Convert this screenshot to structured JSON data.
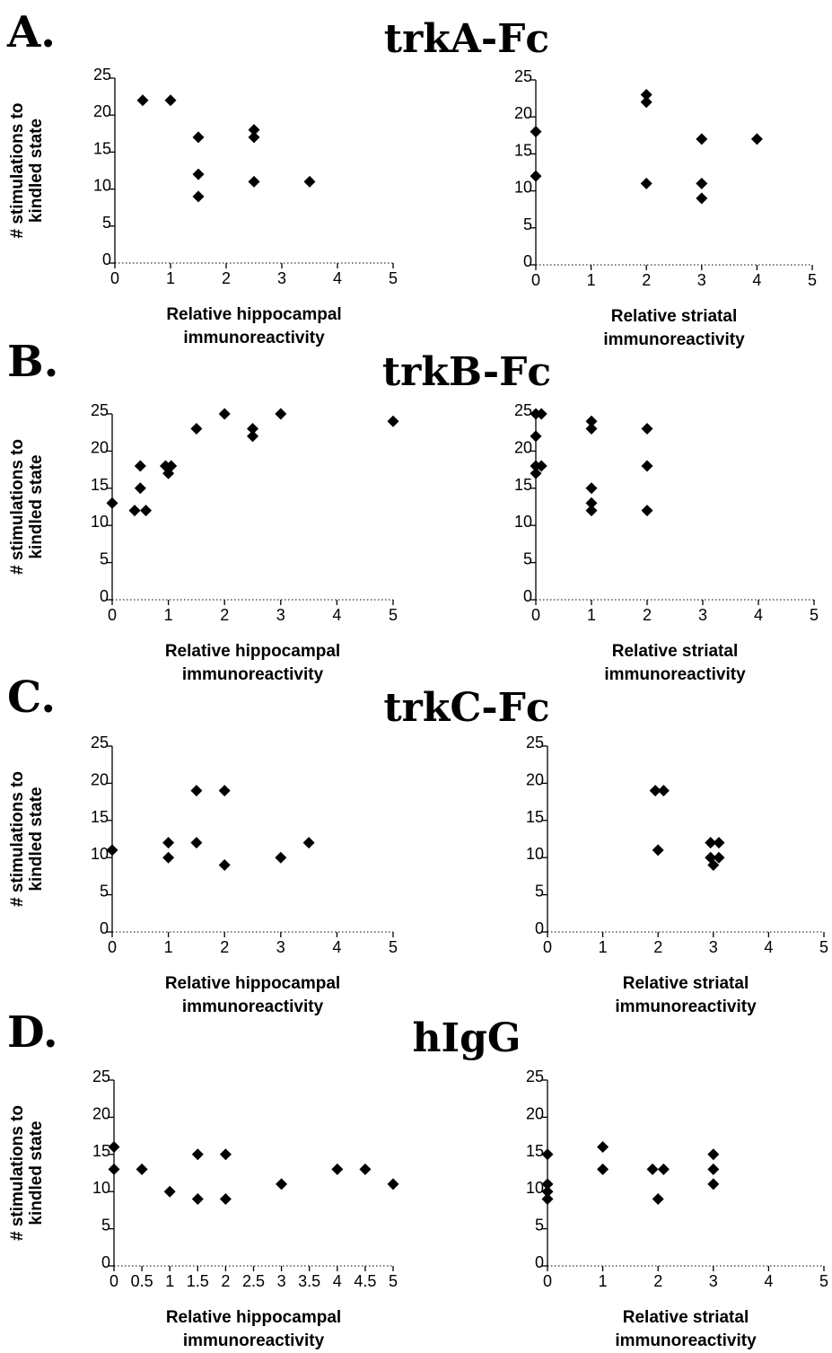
{
  "chart_data": [
    {
      "type": "scatter",
      "panel": "A.",
      "title": "trkA-Fc",
      "xlabel": [
        "Relative hippocampal",
        "immunoreactivity"
      ],
      "ylabel": [
        "# stimulations to",
        "kindled state"
      ],
      "xlim": [
        0,
        5
      ],
      "ylim": [
        0,
        25
      ],
      "xticks": [
        "0",
        "1",
        "2",
        "3",
        "4",
        "5"
      ],
      "yticks": [
        "0",
        "5",
        "10",
        "15",
        "20",
        "25"
      ],
      "points": [
        [
          0.5,
          22
        ],
        [
          1,
          22
        ],
        [
          1.5,
          17
        ],
        [
          1.5,
          12
        ],
        [
          1.5,
          9
        ],
        [
          2.5,
          18
        ],
        [
          2.5,
          17
        ],
        [
          2.5,
          11
        ],
        [
          3.5,
          11
        ]
      ]
    },
    {
      "type": "scatter",
      "panel": "",
      "title": "",
      "xlabel": [
        "Relative striatal",
        "immunoreactivity"
      ],
      "ylabel": [],
      "xlim": [
        0,
        5
      ],
      "ylim": [
        0,
        25
      ],
      "xticks": [
        "0",
        "1",
        "2",
        "3",
        "4",
        "5"
      ],
      "yticks": [
        "0",
        "5",
        "10",
        "15",
        "20",
        "25"
      ],
      "points": [
        [
          0,
          18
        ],
        [
          0,
          12
        ],
        [
          2,
          23
        ],
        [
          2,
          22
        ],
        [
          2,
          11
        ],
        [
          3,
          17
        ],
        [
          3,
          11
        ],
        [
          3,
          9
        ],
        [
          4,
          17
        ]
      ]
    },
    {
      "type": "scatter",
      "panel": "B.",
      "title": "trkB-Fc",
      "xlabel": [
        "Relative hippocampal",
        "immunoreactivity"
      ],
      "ylabel": [
        "# stimulations to",
        "kindled state"
      ],
      "xlim": [
        0,
        5
      ],
      "ylim": [
        0,
        25
      ],
      "xticks": [
        "0",
        "1",
        "2",
        "3",
        "4",
        "5"
      ],
      "yticks": [
        "0",
        "5",
        "10",
        "15",
        "20",
        "25"
      ],
      "points": [
        [
          0,
          13
        ],
        [
          0.4,
          12
        ],
        [
          0.5,
          18
        ],
        [
          0.5,
          15
        ],
        [
          0.6,
          12
        ],
        [
          0.95,
          18
        ],
        [
          1,
          17
        ],
        [
          1.05,
          18
        ],
        [
          1.5,
          23
        ],
        [
          2,
          25
        ],
        [
          2.5,
          23
        ],
        [
          2.5,
          22
        ],
        [
          3,
          25
        ],
        [
          5,
          24
        ]
      ]
    },
    {
      "type": "scatter",
      "panel": "",
      "title": "",
      "xlabel": [
        "Relative striatal",
        "immunoreactivity"
      ],
      "ylabel": [],
      "xlim": [
        0,
        5
      ],
      "ylim": [
        0,
        25
      ],
      "xticks": [
        "0",
        "1",
        "2",
        "3",
        "4",
        "5"
      ],
      "yticks": [
        "0",
        "5",
        "10",
        "15",
        "20",
        "25"
      ],
      "points": [
        [
          0,
          25
        ],
        [
          0.1,
          25
        ],
        [
          0,
          22
        ],
        [
          0,
          18
        ],
        [
          0.1,
          18
        ],
        [
          0,
          17
        ],
        [
          1,
          24
        ],
        [
          1,
          23
        ],
        [
          1,
          15
        ],
        [
          1,
          13
        ],
        [
          1,
          12
        ],
        [
          2,
          23
        ],
        [
          2,
          18
        ],
        [
          2,
          12
        ]
      ]
    },
    {
      "type": "scatter",
      "panel": "C.",
      "title": "trkC-Fc",
      "xlabel": [
        "Relative hippocampal",
        "immunoreactivity"
      ],
      "ylabel": [
        "# stimulations to",
        "kindled state"
      ],
      "xlim": [
        0,
        5
      ],
      "ylim": [
        0,
        25
      ],
      "xticks": [
        "0",
        "1",
        "2",
        "3",
        "4",
        "5"
      ],
      "yticks": [
        "0",
        "5",
        "10",
        "15",
        "20",
        "25"
      ],
      "points": [
        [
          0,
          11
        ],
        [
          1,
          12
        ],
        [
          1,
          10
        ],
        [
          1.5,
          19
        ],
        [
          1.5,
          12
        ],
        [
          2,
          19
        ],
        [
          2,
          9
        ],
        [
          3,
          10
        ],
        [
          3.5,
          12
        ]
      ]
    },
    {
      "type": "scatter",
      "panel": "",
      "title": "",
      "xlabel": [
        "Relative striatal",
        "immunoreactivity"
      ],
      "ylabel": [],
      "xlim": [
        0,
        5
      ],
      "ylim": [
        0,
        25
      ],
      "xticks": [
        "0",
        "1",
        "2",
        "3",
        "4",
        "5"
      ],
      "yticks": [
        "0",
        "5",
        "10",
        "15",
        "20",
        "25"
      ],
      "points": [
        [
          1.95,
          19
        ],
        [
          2.1,
          19
        ],
        [
          2,
          11
        ],
        [
          2.95,
          12
        ],
        [
          3.1,
          12
        ],
        [
          2.95,
          10
        ],
        [
          3.1,
          10
        ],
        [
          3,
          9
        ]
      ]
    },
    {
      "type": "scatter",
      "panel": "D.",
      "title": "hIgG",
      "xlabel": [
        "Relative hippocampal",
        "immunoreactivity"
      ],
      "ylabel": [
        "# stimulations to",
        "kindled state"
      ],
      "xlim": [
        0,
        5
      ],
      "ylim": [
        0,
        25
      ],
      "xticks": [
        "0",
        "0.5",
        "1",
        "1.5",
        "2",
        "2.5",
        "3",
        "3.5",
        "4",
        "4.5",
        "5"
      ],
      "yticks": [
        "0",
        "5",
        "10",
        "15",
        "20",
        "25"
      ],
      "points": [
        [
          0,
          16
        ],
        [
          0,
          13
        ],
        [
          0.5,
          13
        ],
        [
          1,
          10
        ],
        [
          1.5,
          15
        ],
        [
          1.5,
          9
        ],
        [
          2,
          15
        ],
        [
          2,
          9
        ],
        [
          3,
          11
        ],
        [
          4,
          13
        ],
        [
          4.5,
          13
        ],
        [
          5,
          11
        ]
      ]
    },
    {
      "type": "scatter",
      "panel": "",
      "title": "",
      "xlabel": [
        "Relative striatal",
        "immunoreactivity"
      ],
      "ylabel": [],
      "xlim": [
        0,
        5
      ],
      "ylim": [
        0,
        25
      ],
      "xticks": [
        "0",
        "1",
        "2",
        "3",
        "4",
        "5"
      ],
      "yticks": [
        "0",
        "5",
        "10",
        "15",
        "20",
        "25"
      ],
      "points": [
        [
          0,
          15
        ],
        [
          0,
          11
        ],
        [
          0,
          10
        ],
        [
          0,
          9
        ],
        [
          1,
          16
        ],
        [
          1,
          13
        ],
        [
          1.9,
          13
        ],
        [
          2.1,
          13
        ],
        [
          2,
          9
        ],
        [
          3,
          15
        ],
        [
          3,
          13
        ],
        [
          3,
          11
        ]
      ]
    }
  ]
}
